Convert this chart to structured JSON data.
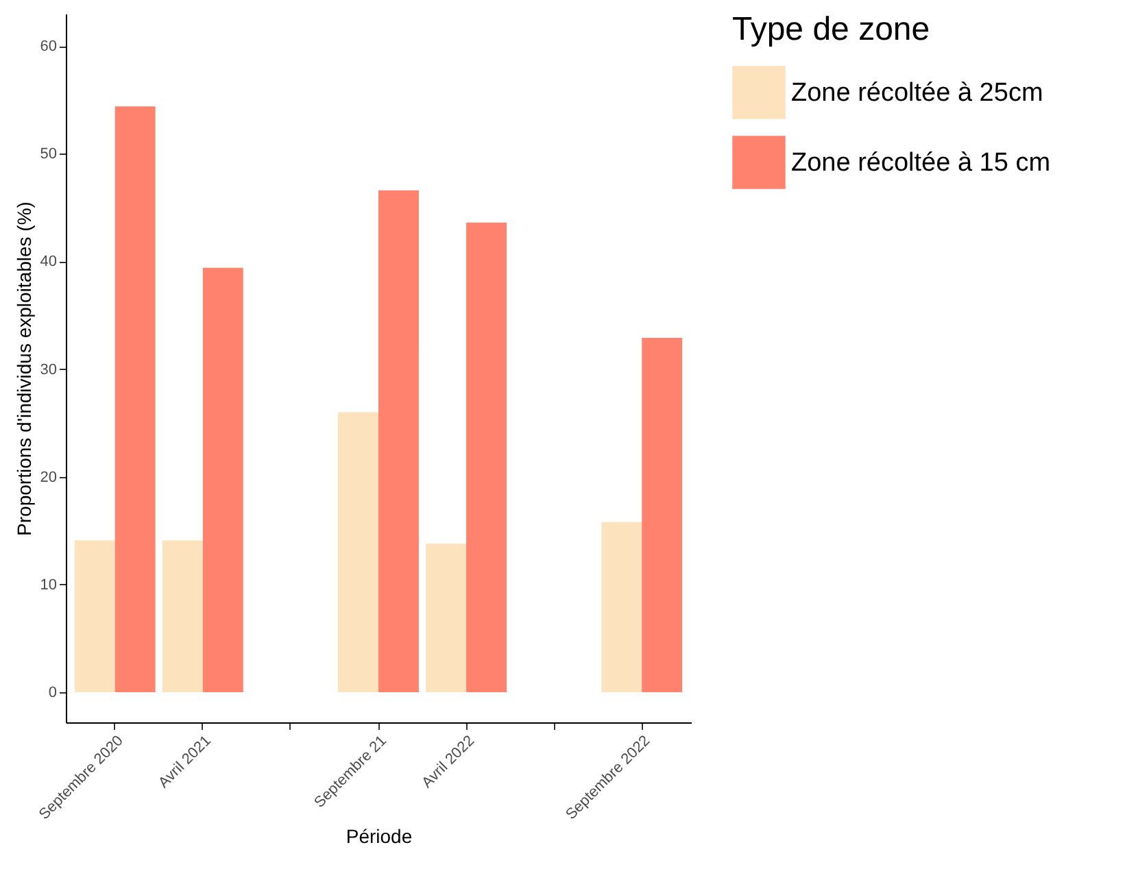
{
  "chart_data": {
    "type": "bar",
    "xlabel": "Période",
    "ylabel": "Proportions d'individus exploitables (%)",
    "legend_title": "Type de zone",
    "categories": [
      "Septembre 2020",
      "Avril 2021",
      null,
      "Septembre 21",
      "Avril 2022",
      null,
      "Septembre 2022"
    ],
    "series": [
      {
        "name": "Zone récoltée à 25cm",
        "color": "#fde3bd",
        "values": [
          14.1,
          14.1,
          null,
          26.0,
          13.8,
          null,
          15.8
        ]
      },
      {
        "name": "Zone récoltée à 15 cm",
        "color": "#fe826e",
        "values": [
          54.4,
          39.4,
          null,
          46.6,
          43.6,
          null,
          32.9
        ]
      }
    ],
    "ylim": [
      -2.8,
      63
    ],
    "yticks": [
      0,
      10,
      20,
      30,
      40,
      50,
      60
    ],
    "grid": false,
    "legend": "right"
  }
}
